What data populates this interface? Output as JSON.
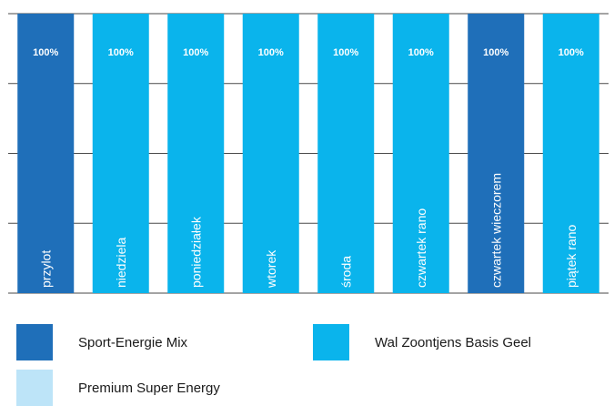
{
  "chart_data": {
    "type": "bar",
    "stacked": true,
    "orientation": "vertical",
    "ylim": [
      0,
      100
    ],
    "grid": true,
    "legend_position": "bottom",
    "categories": [
      "przylot",
      "niedziela",
      "poniedziałek",
      "wtorek",
      "środa",
      "czwartek rano",
      "czwartek wieczorem",
      "piątek rano"
    ],
    "series": [
      {
        "name": "Sport-Energie Mix",
        "color": "#1f6fb9",
        "values": [
          100,
          0,
          0,
          0,
          0,
          0,
          100,
          0
        ]
      },
      {
        "name": "Wal Zoontjens Basis Geel",
        "color": "#0ab4ec",
        "values": [
          0,
          100,
          100,
          100,
          100,
          100,
          0,
          100
        ]
      },
      {
        "name": "Premium Super Energy",
        "color": "#bde4f8",
        "values": [
          0,
          0,
          0,
          0,
          0,
          0,
          0,
          0
        ]
      }
    ],
    "data_labels": [
      "100%",
      "100%",
      "100%",
      "100%",
      "100%",
      "100%",
      "100%",
      "100%"
    ]
  }
}
